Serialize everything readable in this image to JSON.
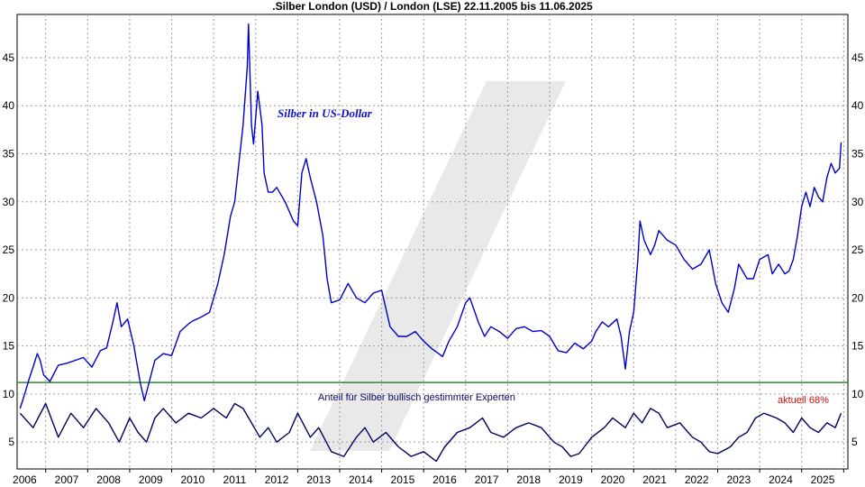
{
  "chart_data": {
    "type": "line",
    "title": ".Silber London (USD) / London (LSE) 22.11.2005 bis 11.06.2025",
    "xlabel": "",
    "ylabel": "",
    "xlim": [
      2005.82,
      2025.6
    ],
    "ylim": [
      2.2,
      49.5
    ],
    "x_ticks": [
      2006,
      2007,
      2008,
      2009,
      2010,
      2011,
      2012,
      2013,
      2014,
      2015,
      2016,
      2017,
      2018,
      2019,
      2020,
      2021,
      2022,
      2023,
      2024,
      2025
    ],
    "y_ticks": [
      5,
      10,
      15,
      20,
      25,
      30,
      35,
      40,
      45
    ],
    "grid": true,
    "reference_line": {
      "y": 11.2,
      "color": "#2a8a2a"
    },
    "annotations": {
      "silver_label": "Silber in US-Dollar",
      "sentiment_label": "Anteil für Silber bullisch gestimmter Experten",
      "current_label": "aktuell 68%"
    },
    "colors": {
      "silver": "#0000c8",
      "sentiment": "#000060",
      "reference": "#2a8a2a",
      "grid": "#9a9a9a",
      "current_label": "#d01010",
      "watermark": "#e9e9e9"
    },
    "series": [
      {
        "name": "Silber in US-Dollar",
        "x": [
          2005.89,
          2006.0,
          2006.1,
          2006.2,
          2006.3,
          2006.37,
          2006.45,
          2006.6,
          2006.8,
          2007.0,
          2007.2,
          2007.4,
          2007.6,
          2007.8,
          2007.95,
          2008.1,
          2008.2,
          2008.3,
          2008.45,
          2008.6,
          2008.75,
          2008.85,
          2008.95,
          2009.1,
          2009.3,
          2009.5,
          2009.7,
          2009.9,
          2010.0,
          2010.2,
          2010.4,
          2010.6,
          2010.75,
          2010.9,
          2011.0,
          2011.1,
          2011.2,
          2011.3,
          2011.33,
          2011.4,
          2011.45,
          2011.55,
          2011.65,
          2011.7,
          2011.8,
          2011.9,
          2012.0,
          2012.2,
          2012.4,
          2012.5,
          2012.6,
          2012.7,
          2012.8,
          2012.95,
          2013.1,
          2013.2,
          2013.3,
          2013.5,
          2013.7,
          2013.9,
          2014.1,
          2014.3,
          2014.5,
          2014.7,
          2014.9,
          2015.1,
          2015.3,
          2015.5,
          2015.7,
          2015.95,
          2016.1,
          2016.3,
          2016.5,
          2016.6,
          2016.8,
          2016.95,
          2017.1,
          2017.3,
          2017.5,
          2017.7,
          2017.9,
          2018.1,
          2018.3,
          2018.5,
          2018.7,
          2018.9,
          2019.1,
          2019.3,
          2019.5,
          2019.6,
          2019.75,
          2019.9,
          2020.1,
          2020.2,
          2020.3,
          2020.4,
          2020.5,
          2020.6,
          2020.65,
          2020.75,
          2020.9,
          2021.0,
          2021.1,
          2021.3,
          2021.5,
          2021.7,
          2021.9,
          2022.1,
          2022.3,
          2022.45,
          2022.6,
          2022.75,
          2022.9,
          2023.0,
          2023.2,
          2023.35,
          2023.5,
          2023.7,
          2023.8,
          2023.95,
          2024.1,
          2024.2,
          2024.3,
          2024.4,
          2024.5,
          2024.6,
          2024.7,
          2024.8,
          2024.9,
          2025.0,
          2025.1,
          2025.2,
          2025.3,
          2025.4,
          2025.44
        ],
        "values": [
          8.5,
          10.0,
          11.5,
          12.8,
          14.2,
          13.5,
          12.0,
          11.3,
          13.0,
          13.2,
          13.5,
          13.8,
          12.8,
          14.5,
          14.8,
          17.5,
          19.5,
          17.0,
          17.8,
          15.0,
          11.2,
          9.3,
          11.0,
          13.5,
          14.2,
          14.0,
          16.5,
          17.3,
          17.6,
          18.0,
          18.5,
          21.5,
          24.5,
          28.5,
          30.0,
          34.0,
          38.0,
          44.0,
          48.5,
          38.0,
          36.0,
          41.5,
          38.0,
          33.0,
          31.0,
          31.0,
          31.5,
          30.0,
          28.0,
          27.5,
          33.0,
          34.5,
          32.5,
          30.0,
          26.5,
          22.0,
          19.5,
          19.8,
          21.5,
          20.0,
          19.5,
          20.5,
          20.8,
          17.0,
          16.0,
          16.0,
          16.5,
          15.5,
          14.7,
          13.9,
          15.5,
          17.0,
          19.5,
          20.0,
          17.5,
          16.0,
          17.0,
          16.5,
          15.8,
          16.8,
          17.0,
          16.5,
          16.6,
          16.0,
          14.5,
          14.3,
          15.3,
          14.7,
          15.5,
          16.5,
          17.5,
          17.0,
          17.8,
          16.0,
          12.6,
          16.5,
          18.5,
          24.0,
          28.0,
          26.0,
          24.5,
          25.5,
          27.0,
          26.0,
          25.5,
          24.0,
          23.0,
          23.5,
          25.0,
          21.5,
          19.5,
          18.5,
          21.0,
          23.5,
          22.0,
          22.0,
          24.0,
          24.5,
          22.5,
          23.5,
          22.5,
          22.8,
          24.0,
          26.5,
          29.5,
          31.0,
          29.5,
          31.5,
          30.5,
          30.0,
          32.5,
          34.0,
          33.0,
          33.5,
          36.2
        ]
      },
      {
        "name": "Anteil für Silber bullisch gestimmter Experten",
        "x": [
          2005.89,
          2006.2,
          2006.5,
          2006.8,
          2007.1,
          2007.4,
          2007.7,
          2008.0,
          2008.25,
          2008.5,
          2008.7,
          2008.9,
          2009.1,
          2009.3,
          2009.6,
          2009.9,
          2010.2,
          2010.5,
          2010.8,
          2011.0,
          2011.2,
          2011.4,
          2011.6,
          2011.8,
          2012.0,
          2012.3,
          2012.5,
          2012.8,
          2013.0,
          2013.3,
          2013.6,
          2013.9,
          2014.1,
          2014.3,
          2014.6,
          2014.9,
          2015.2,
          2015.5,
          2015.8,
          2016.0,
          2016.3,
          2016.6,
          2016.9,
          2017.1,
          2017.4,
          2017.7,
          2018.0,
          2018.3,
          2018.6,
          2018.8,
          2019.0,
          2019.2,
          2019.5,
          2019.8,
          2020.0,
          2020.3,
          2020.5,
          2020.7,
          2020.9,
          2021.1,
          2021.3,
          2021.6,
          2021.9,
          2022.1,
          2022.3,
          2022.5,
          2022.8,
          2023.0,
          2023.2,
          2023.4,
          2023.6,
          2023.9,
          2024.1,
          2024.3,
          2024.5,
          2024.7,
          2024.9,
          2025.1,
          2025.3,
          2025.44
        ],
        "values": [
          8.0,
          6.5,
          9.0,
          5.5,
          8.0,
          6.5,
          8.5,
          7.0,
          5.0,
          7.5,
          6.0,
          5.0,
          7.5,
          8.5,
          7.0,
          8.0,
          7.5,
          8.5,
          7.5,
          9.0,
          8.5,
          7.0,
          5.5,
          6.5,
          5.0,
          6.0,
          8.0,
          5.5,
          6.5,
          4.0,
          3.5,
          5.5,
          6.5,
          5.0,
          6.0,
          4.5,
          3.5,
          4.0,
          3.0,
          4.5,
          6.0,
          6.5,
          7.5,
          6.0,
          5.5,
          6.5,
          7.0,
          6.5,
          5.0,
          4.5,
          3.5,
          3.8,
          5.5,
          6.5,
          7.5,
          6.5,
          8.0,
          7.0,
          8.5,
          8.0,
          6.5,
          7.0,
          5.5,
          5.0,
          4.0,
          3.8,
          4.5,
          5.5,
          6.0,
          7.5,
          8.0,
          7.5,
          7.0,
          6.0,
          7.5,
          6.5,
          6.0,
          7.0,
          6.5,
          8.0
        ]
      }
    ]
  }
}
